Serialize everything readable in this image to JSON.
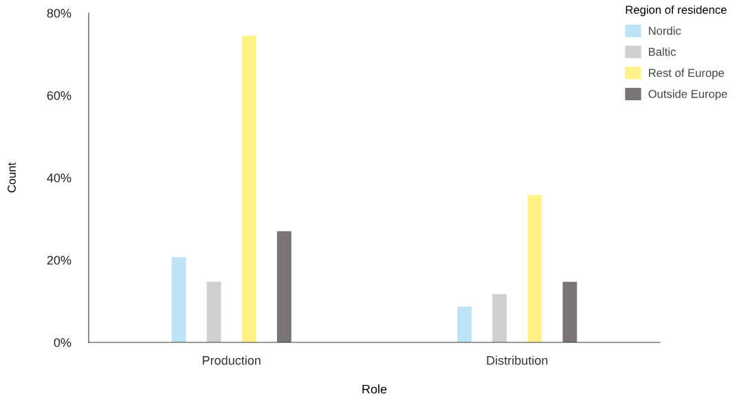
{
  "chart_data": {
    "type": "bar",
    "xlabel": "Role",
    "ylabel": "Count",
    "legend_title": "Region of residence",
    "categories": [
      "Production",
      "Distribution"
    ],
    "series": [
      {
        "name": "Nordic",
        "color": "#bde3f5",
        "values": [
          20.7,
          8.7
        ]
      },
      {
        "name": "Baltic",
        "color": "#d0d0d0",
        "values": [
          14.7,
          11.7
        ]
      },
      {
        "name": "Rest of Europe",
        "color": "#fff28a",
        "values": [
          74.5,
          35.8
        ]
      },
      {
        "name": "Outside Europe",
        "color": "#7a7574",
        "values": [
          27,
          14.7
        ]
      }
    ],
    "ylim": [
      0,
      80
    ],
    "yticks": [
      {
        "value": 0,
        "label": "0%"
      },
      {
        "value": 20,
        "label": "20%"
      },
      {
        "value": 40,
        "label": "40%"
      },
      {
        "value": 60,
        "label": "60%"
      },
      {
        "value": 80,
        "label": "80%"
      }
    ],
    "grid": false,
    "legend": "top right"
  }
}
